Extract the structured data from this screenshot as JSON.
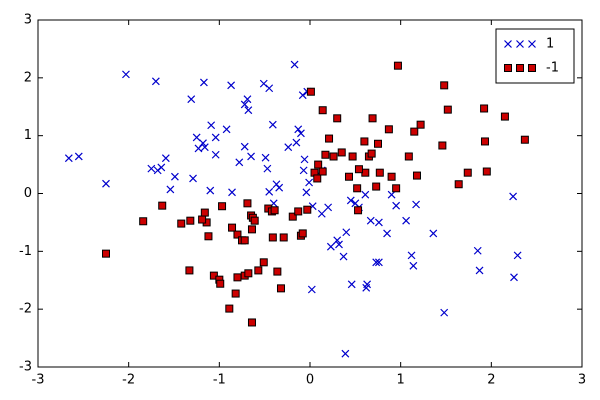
{
  "chart_data": {
    "type": "scatter",
    "xlim": [
      -3,
      3
    ],
    "ylim": [
      -3,
      3
    ],
    "xticks": [
      -3,
      -2,
      -1,
      0,
      1,
      2,
      3
    ],
    "yticks": [
      -3,
      -2,
      -1,
      0,
      1,
      2,
      3
    ],
    "legend": "upper right",
    "series": [
      {
        "name": "1",
        "color": "#0000cc",
        "marker": "x",
        "x": [
          -2.66,
          -2.55,
          -2.03,
          -1.7,
          -2.25,
          -1.75,
          -1.68,
          -1.64,
          -1.59,
          -1.49,
          -1.54,
          -1.31,
          -1.17,
          -1.25,
          -1.23,
          -1.18,
          -1.16,
          -1.09,
          -1.04,
          -1.04,
          -1.29,
          -1.1,
          -0.92,
          -0.87,
          -0.78,
          -0.72,
          -0.69,
          -0.68,
          -0.72,
          -0.65,
          -0.86,
          -0.51,
          -0.45,
          -0.41,
          -0.49,
          -0.47,
          -0.45,
          -0.37,
          -0.34,
          -0.24,
          -0.17,
          -0.13,
          -0.1,
          -0.15,
          -0.08,
          -0.03,
          -0.06,
          -0.07,
          -0.01,
          0.03,
          0.13,
          0.02,
          0.23,
          0.3,
          0.32,
          0.37,
          0.39,
          0.4,
          0.45,
          0.5,
          0.54,
          0.61,
          0.63,
          0.62,
          0.67,
          0.73,
          0.76,
          0.76,
          0.85,
          0.9,
          0.95,
          1.06,
          1.12,
          1.14,
          1.17,
          1.36,
          1.48,
          1.85,
          1.87,
          2.24,
          2.25,
          2.29,
          0.46,
          0.13,
          -0.04,
          -0.4,
          0.2
        ],
        "values": [
          0.61,
          0.64,
          2.06,
          1.94,
          0.17,
          0.43,
          0.4,
          0.45,
          0.61,
          0.29,
          0.07,
          1.63,
          1.92,
          0.97,
          0.78,
          0.87,
          0.8,
          1.18,
          0.97,
          0.67,
          0.26,
          0.05,
          1.11,
          1.87,
          0.54,
          1.54,
          1.63,
          1.44,
          0.81,
          0.64,
          0.02,
          1.9,
          1.82,
          1.19,
          0.62,
          0.43,
          0.03,
          0.16,
          0.1,
          0.8,
          2.23,
          1.11,
          1.04,
          0.88,
          1.7,
          1.76,
          0.59,
          0.4,
          0.19,
          -0.22,
          -0.35,
          -1.66,
          -0.92,
          -0.81,
          -0.88,
          -1.09,
          -2.77,
          -0.67,
          -0.12,
          -0.17,
          -0.24,
          -0.02,
          -1.57,
          -1.63,
          -0.47,
          -1.19,
          -1.19,
          -0.5,
          -0.69,
          -0.02,
          -0.21,
          -0.47,
          -1.07,
          -1.25,
          -0.19,
          -0.69,
          -2.06,
          -0.99,
          -1.33,
          -0.05,
          -1.45,
          -1.07,
          -1.57,
          0.4,
          0.02,
          -0.17,
          -0.24
        ]
      },
      {
        "name": "-1",
        "color": "#cc0000",
        "marker": "s",
        "x": [
          -2.25,
          -1.84,
          -1.63,
          -1.42,
          -1.32,
          -1.33,
          -1.16,
          -1.14,
          -1.19,
          -1.12,
          -1.06,
          -1.0,
          -0.99,
          -0.97,
          -0.89,
          -0.86,
          -0.82,
          -0.8,
          -0.8,
          -0.75,
          -0.72,
          -0.72,
          -0.68,
          -0.69,
          -0.65,
          -0.64,
          -0.63,
          -0.64,
          -0.61,
          -0.57,
          -0.51,
          -0.46,
          -0.42,
          -0.39,
          -0.41,
          -0.36,
          -0.32,
          -0.29,
          -0.19,
          -0.13,
          -0.1,
          -0.08,
          -0.03,
          0.01,
          0.09,
          0.05,
          0.08,
          0.14,
          0.14,
          0.21,
          0.26,
          0.3,
          0.35,
          0.43,
          0.47,
          0.52,
          0.53,
          0.6,
          0.61,
          0.65,
          0.69,
          0.68,
          0.73,
          0.75,
          0.87,
          0.9,
          0.95,
          0.97,
          1.09,
          1.15,
          1.18,
          1.22,
          1.46,
          1.48,
          1.52,
          1.64,
          1.74,
          1.92,
          1.93,
          1.95,
          2.15,
          2.37,
          0.17,
          0.54,
          0.77
        ],
        "values": [
          -1.04,
          -0.48,
          -0.21,
          -0.52,
          -0.47,
          -1.33,
          -0.33,
          -0.5,
          -0.45,
          -0.74,
          -1.42,
          -1.49,
          -1.56,
          -0.22,
          -1.99,
          -0.59,
          -1.73,
          -0.71,
          -1.45,
          -0.81,
          -0.81,
          -1.42,
          -1.38,
          -0.17,
          -0.38,
          -0.62,
          -0.42,
          -2.23,
          -0.47,
          -1.33,
          -1.19,
          -0.26,
          -0.31,
          -0.29,
          -0.76,
          -1.35,
          -1.64,
          -0.76,
          -0.4,
          -0.31,
          -0.73,
          -0.69,
          -0.28,
          1.76,
          0.5,
          0.36,
          0.26,
          1.44,
          0.38,
          0.95,
          0.64,
          1.3,
          0.71,
          0.29,
          0.64,
          0.09,
          -0.29,
          0.9,
          0.36,
          0.64,
          1.3,
          0.69,
          0.12,
          0.86,
          1.11,
          0.29,
          0.09,
          2.21,
          0.64,
          1.07,
          0.31,
          1.19,
          0.83,
          1.87,
          1.45,
          0.16,
          0.36,
          1.47,
          0.9,
          0.38,
          1.33,
          0.93,
          0.67,
          0.42,
          0.36
        ]
      }
    ]
  }
}
